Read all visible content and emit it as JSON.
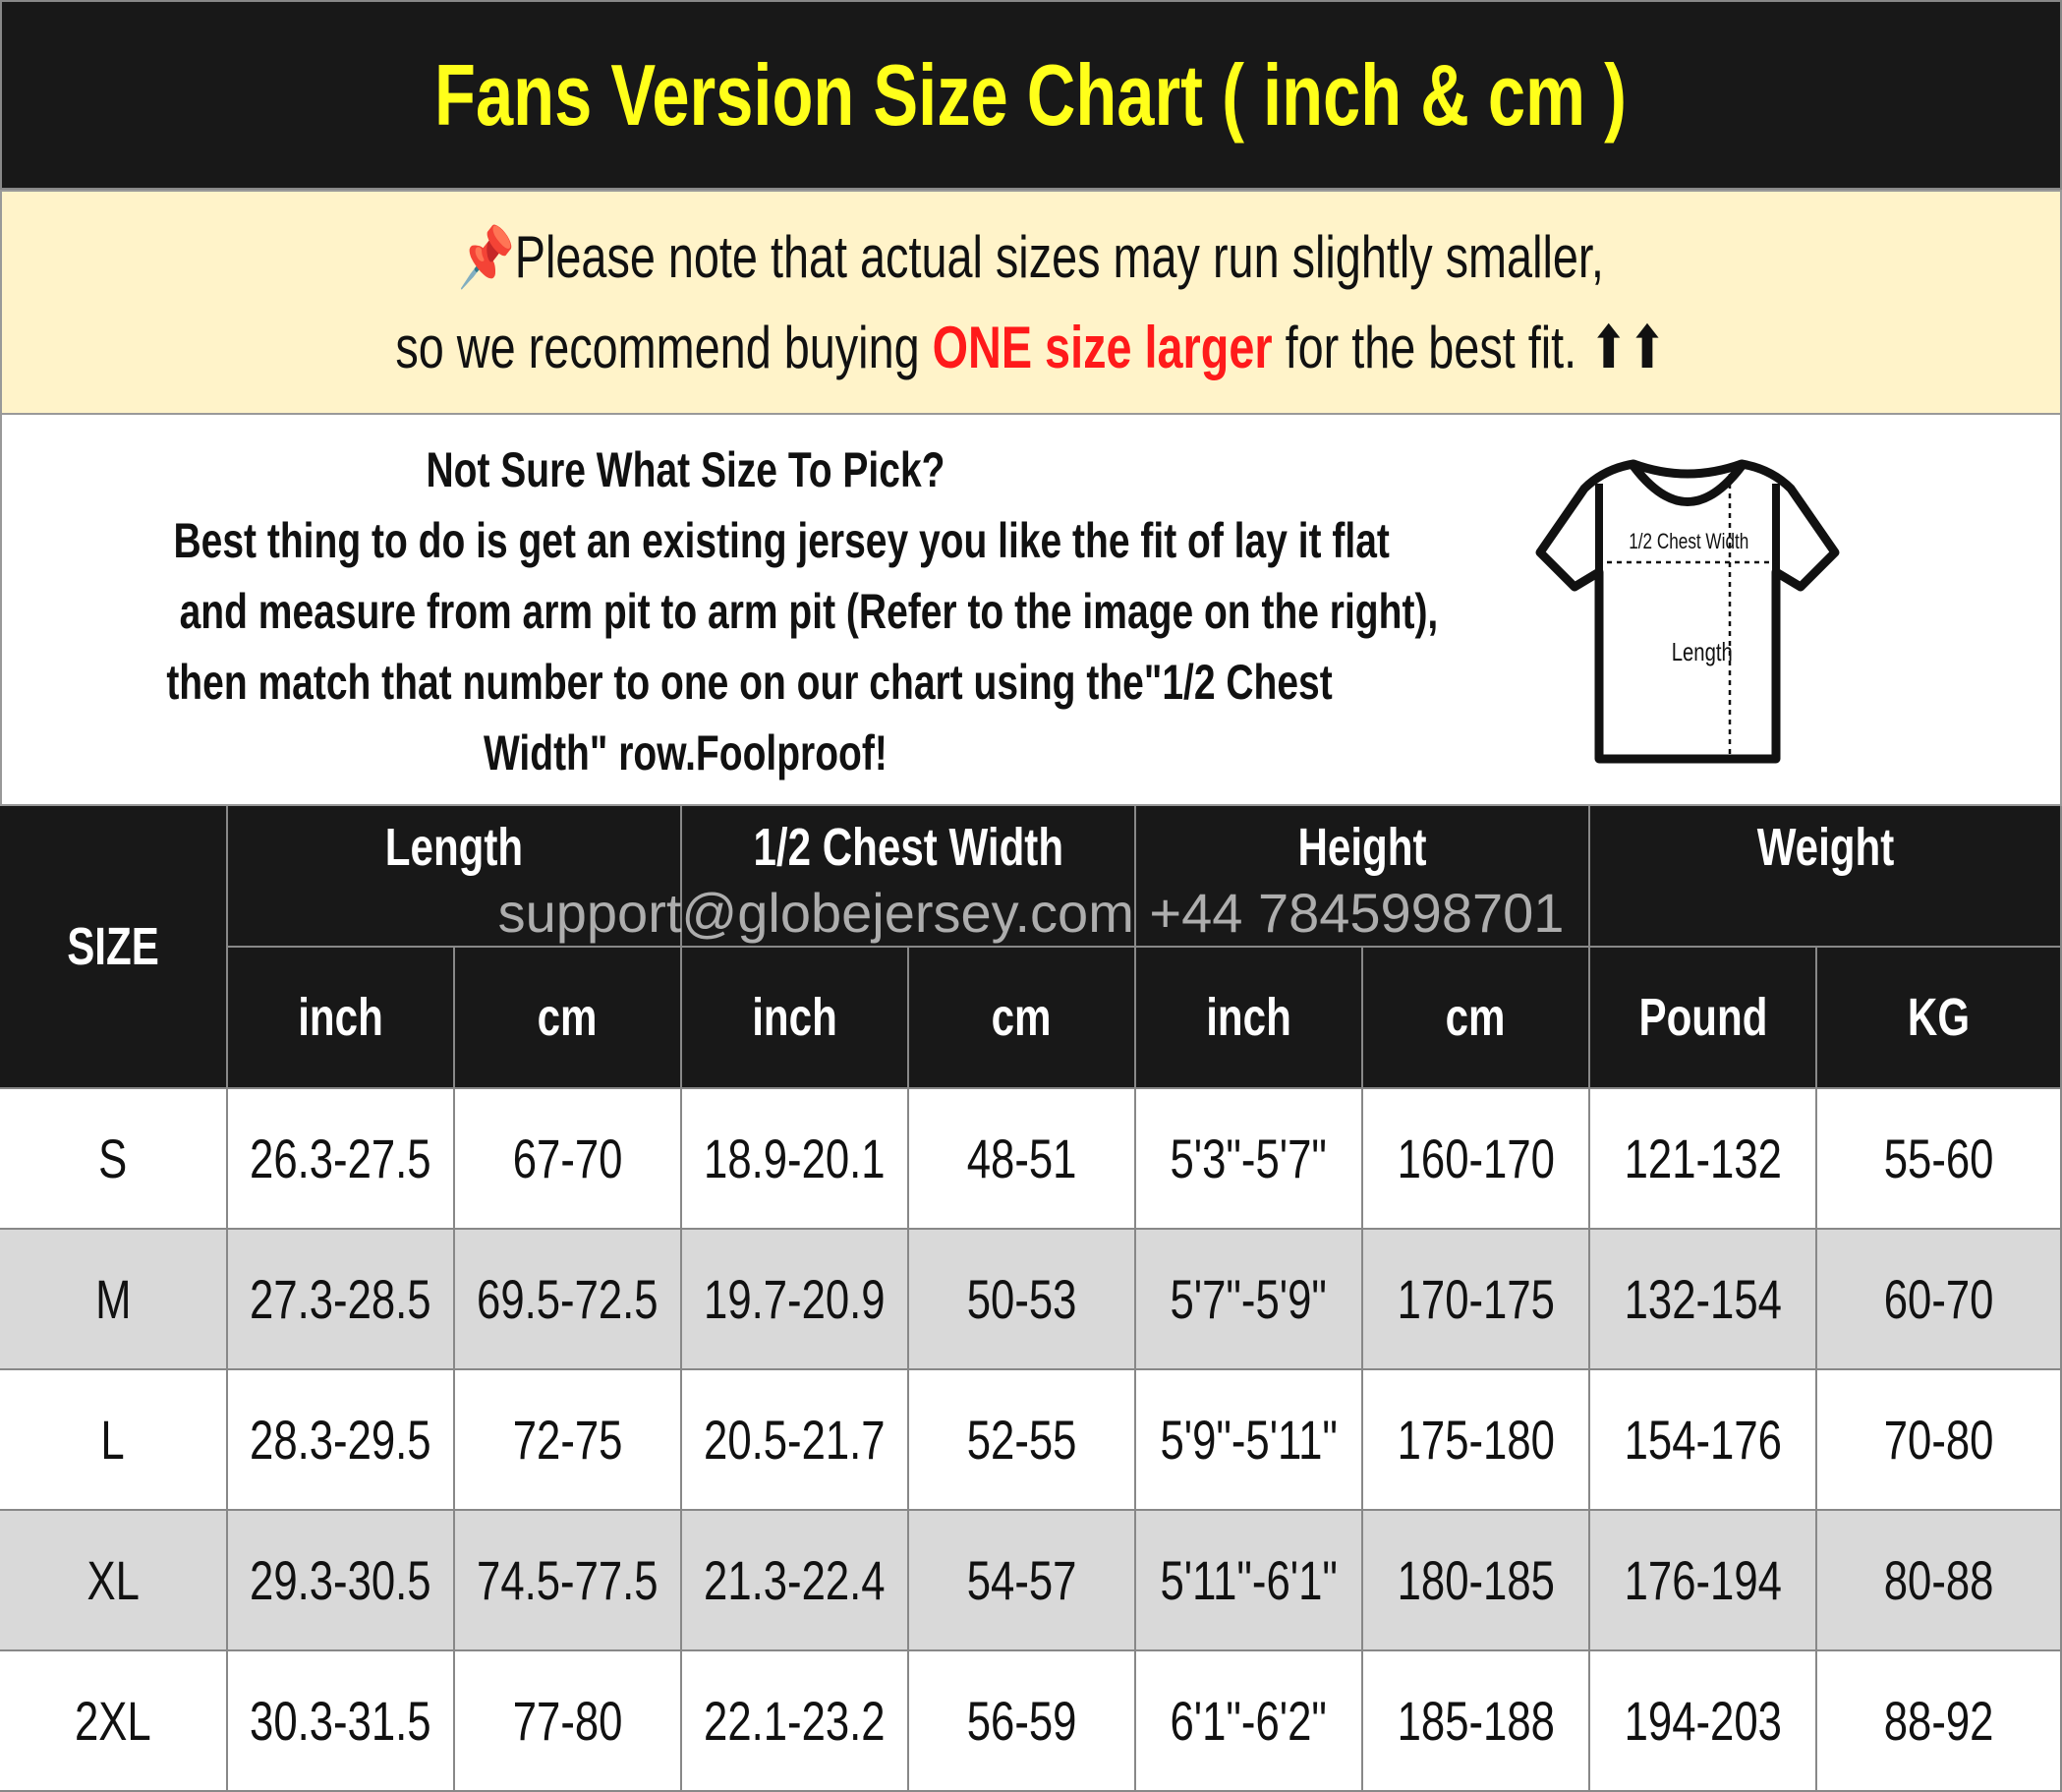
{
  "title": "Fans Version Size Chart ( inch & cm )",
  "notice": {
    "icon": "pushpin-icon",
    "line1": "Please note that actual sizes may run slightly smaller,",
    "line2_pre": "so we recommend buying ",
    "line2_highlight": "ONE size larger",
    "line2_post": " for the best fit. ",
    "arrows": "⬆⬆",
    "highlight_color": "#ff1a1a"
  },
  "info": {
    "heading": "Not Sure What Size To Pick?",
    "lines": [
      "Best thing to do is get an existing jersey you like the fit of lay it flat",
      "and measure from arm pit to arm pit (Refer to the image on the right),",
      "then match that number to one on our chart using the\"1/2 Chest",
      "Width\" row.Foolproof!"
    ],
    "diagram": {
      "chest_label": "1/2 Chest Width",
      "length_label": "Length"
    }
  },
  "watermark": "support@globejersey.com   +44 7845998701",
  "table": {
    "size_header": "SIZE",
    "groups": [
      "Length",
      "1/2 Chest Width",
      "Height",
      "Weight"
    ],
    "units": [
      "inch",
      "cm",
      "inch",
      "cm",
      "inch",
      "cm",
      "Pound",
      "KG"
    ],
    "rows": [
      [
        "S",
        "26.3-27.5",
        "67-70",
        "18.9-20.1",
        "48-51",
        "5'3\"-5'7\"",
        "160-170",
        "121-132",
        "55-60"
      ],
      [
        "M",
        "27.3-28.5",
        "69.5-72.5",
        "19.7-20.9",
        "50-53",
        "5'7\"-5'9\"",
        "170-175",
        "132-154",
        "60-70"
      ],
      [
        "L",
        "28.3-29.5",
        "72-75",
        "20.5-21.7",
        "52-55",
        "5'9\"-5'11\"",
        "175-180",
        "154-176",
        "70-80"
      ],
      [
        "XL",
        "29.3-30.5",
        "74.5-77.5",
        "21.3-22.4",
        "54-57",
        "5'11\"-6'1\"",
        "180-185",
        "176-194",
        "80-88"
      ],
      [
        "2XL",
        "30.3-31.5",
        "77-80",
        "22.1-23.2",
        "56-59",
        "6'1\"-6'2\"",
        "185-188",
        "194-203",
        "88-92"
      ]
    ]
  }
}
